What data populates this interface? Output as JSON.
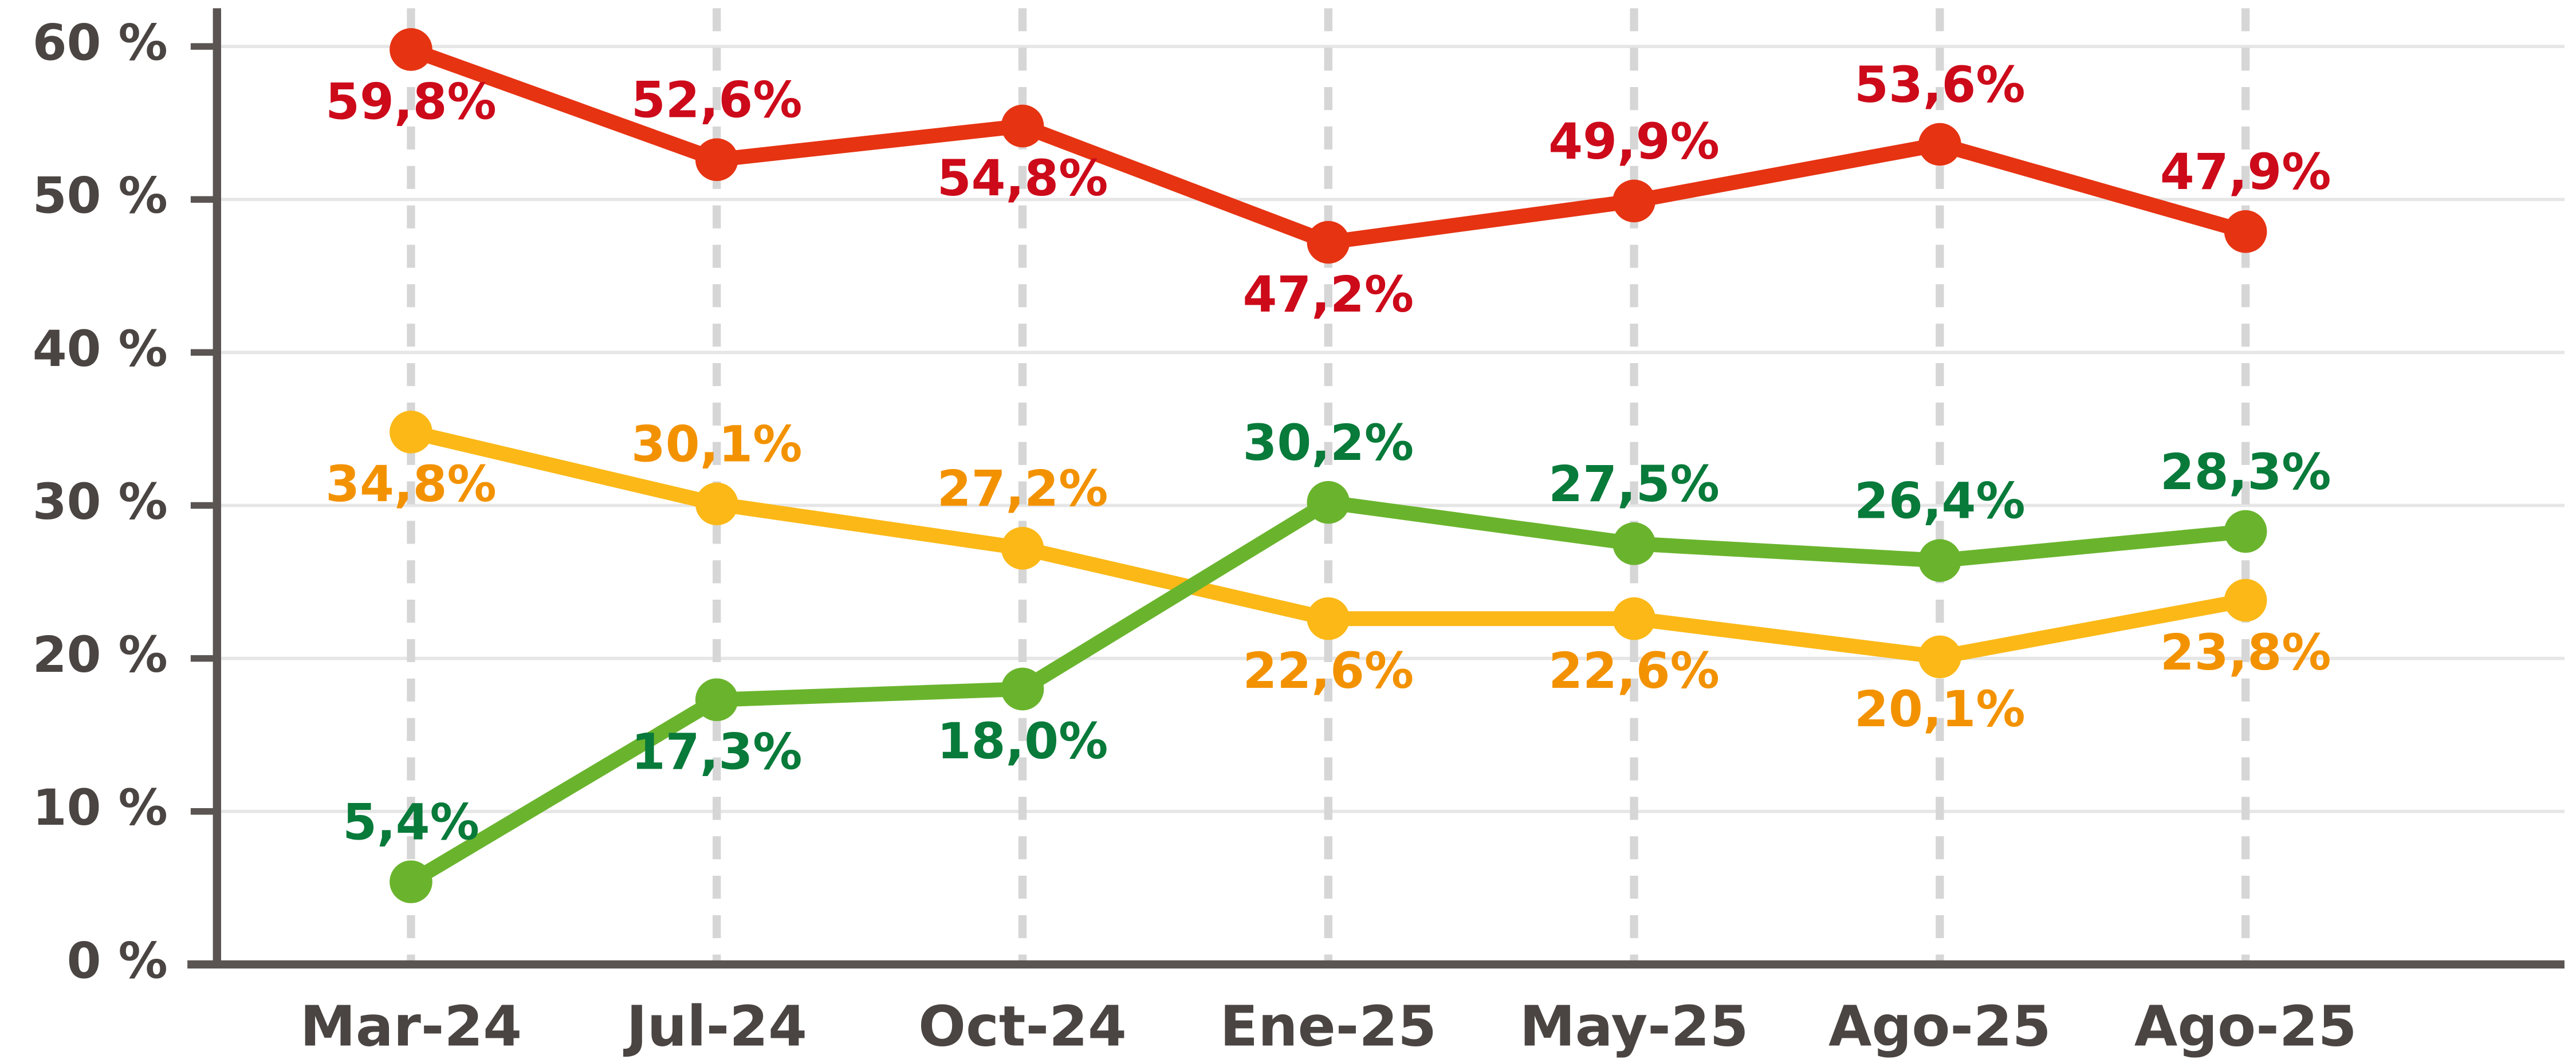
{
  "chart_data": {
    "type": "line",
    "categories": [
      "Mar-24",
      "Jul-24",
      "Oct-24",
      "Ene-25",
      "May-25",
      "Ago-25",
      "Ago-25"
    ],
    "series": [
      {
        "color": "#e63312",
        "label_color": "#cc0a1a",
        "values": [
          59.8,
          52.6,
          54.8,
          47.2,
          49.9,
          53.6,
          47.9
        ],
        "value_labels": [
          "59,8%",
          "52,6%",
          "54,8%",
          "47,2%",
          "49,9%",
          "53,6%",
          "47,9%"
        ]
      },
      {
        "color": "#fbb817",
        "label_color": "#f39200",
        "values": [
          34.8,
          30.1,
          27.2,
          22.6,
          22.6,
          20.1,
          23.8
        ],
        "value_labels": [
          "34,8%",
          "30,1%",
          "27,2%",
          "22,6%",
          "22,6%",
          "20,1%",
          "23,8%"
        ]
      },
      {
        "color": "#6ab42d",
        "label_color": "#087a3a",
        "values": [
          5.4,
          17.3,
          18.0,
          30.2,
          27.5,
          26.4,
          28.3
        ],
        "value_labels": [
          "5,4%",
          "17,3%",
          "18,0%",
          "30,2%",
          "27,5%",
          "26,4%",
          "28,3%"
        ]
      }
    ],
    "ylim": [
      0,
      62.5
    ],
    "yticks": [
      {
        "value": 0,
        "label": "0 %"
      },
      {
        "value": 10,
        "label": "10 %"
      },
      {
        "value": 20,
        "label": "20 %"
      },
      {
        "value": 30,
        "label": "30 %"
      },
      {
        "value": 40,
        "label": "40 %"
      },
      {
        "value": 50,
        "label": "50 %"
      },
      {
        "value": 60,
        "label": "60 %"
      }
    ],
    "grid": true
  }
}
